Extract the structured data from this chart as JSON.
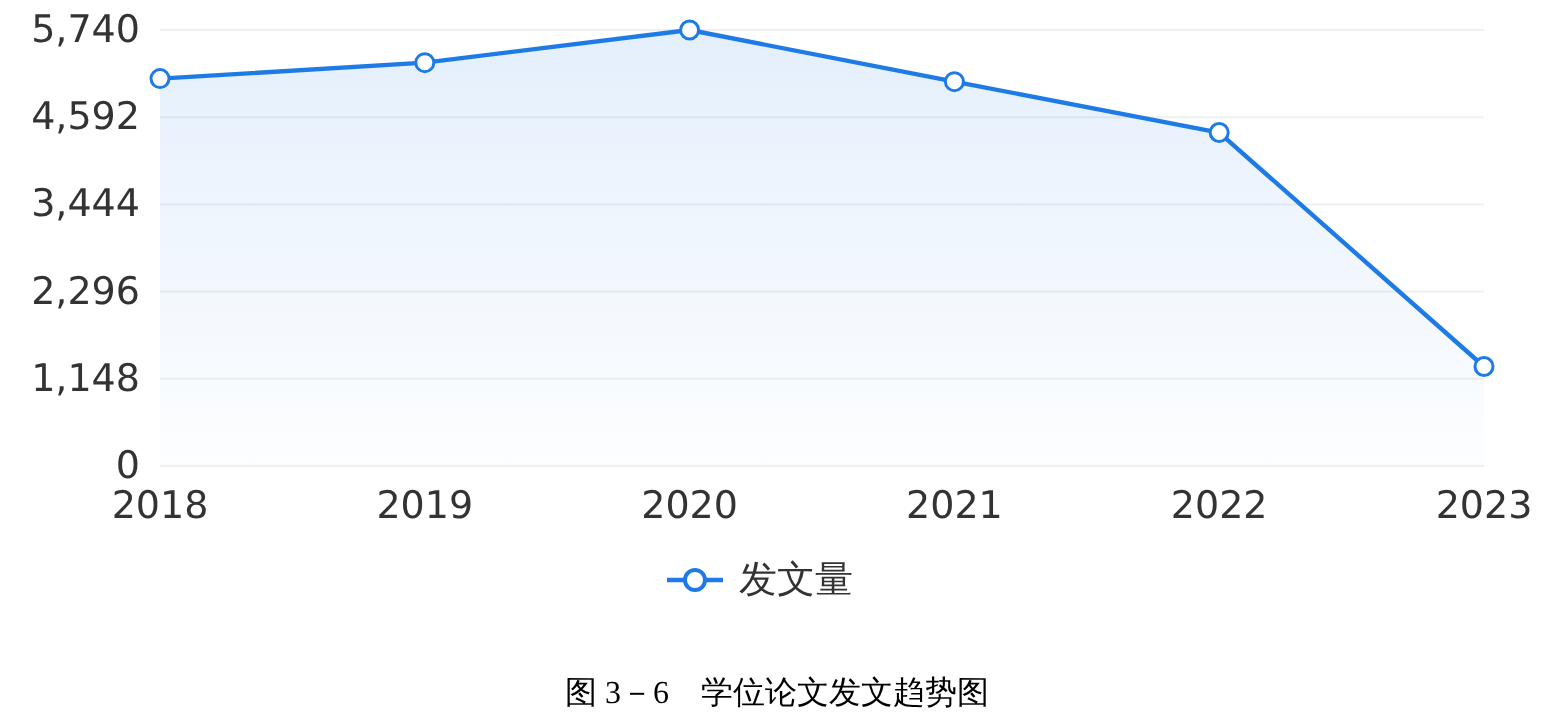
{
  "chart_data": {
    "type": "area",
    "categories": [
      "2018",
      "2019",
      "2020",
      "2021",
      "2022",
      "2023"
    ],
    "series": [
      {
        "name": "发文量",
        "color": "#1e7be6",
        "values": [
          5100,
          5310,
          5740,
          5060,
          4390,
          1310
        ]
      }
    ],
    "ylim": [
      0,
      5740
    ],
    "yticks": [
      0,
      {
        "value": 1148,
        "label": "1,148"
      },
      {
        "value": 2296,
        "label": "2,296"
      },
      {
        "value": 3444,
        "label": "3,444"
      },
      {
        "value": 4592,
        "label": "4,592"
      },
      {
        "value": 5740,
        "label": "5,740"
      }
    ],
    "grid": "y",
    "marker": "circle",
    "legend": "bottom",
    "annotations": [
      "图 3－6　学位论文发文趋势图"
    ]
  }
}
